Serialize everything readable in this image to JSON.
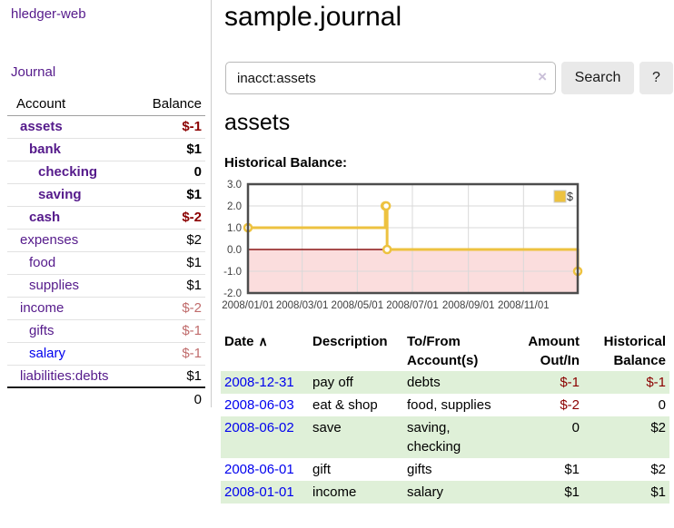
{
  "sidebar": {
    "brand": "hledger-web",
    "journal_link": "Journal",
    "accounts": {
      "col_account": "Account",
      "col_balance": "Balance",
      "rows": [
        {
          "name": "assets",
          "depth": 0,
          "bold": true,
          "balance": "$-1",
          "balance_class": "neg"
        },
        {
          "name": "bank",
          "depth": 1,
          "bold": true,
          "balance": "$1",
          "balance_class": ""
        },
        {
          "name": "checking",
          "depth": 2,
          "bold": true,
          "balance": "0",
          "balance_class": ""
        },
        {
          "name": "saving",
          "depth": 2,
          "bold": true,
          "balance": "$1",
          "balance_class": ""
        },
        {
          "name": "cash",
          "depth": 1,
          "bold": true,
          "balance": "$-2",
          "balance_class": "neg"
        },
        {
          "name": "expenses",
          "depth": 0,
          "bold": false,
          "balance": "$2",
          "balance_class": ""
        },
        {
          "name": "food",
          "depth": 1,
          "bold": false,
          "balance": "$1",
          "balance_class": ""
        },
        {
          "name": "supplies",
          "depth": 1,
          "bold": false,
          "balance": "$1",
          "balance_class": ""
        },
        {
          "name": "income",
          "depth": 0,
          "bold": false,
          "balance": "$-2",
          "balance_class": "neg-soft"
        },
        {
          "name": "gifts",
          "depth": 1,
          "bold": false,
          "balance": "$-1",
          "balance_class": "neg-soft"
        },
        {
          "name": "salary",
          "depth": 1,
          "bold": false,
          "balance": "$-1",
          "balance_class": "neg-soft",
          "link_color": "blue"
        },
        {
          "name": "liabilities:debts",
          "depth": 0,
          "bold": false,
          "balance": "$1",
          "balance_class": ""
        }
      ],
      "total": "0"
    }
  },
  "main": {
    "title": "sample.journal",
    "search": {
      "value": "inacct:assets",
      "clear_icon": "×",
      "search_button": "Search",
      "help_button": "?"
    },
    "account_heading": "assets",
    "chart_title": "Historical Balance:"
  },
  "chart_data": {
    "type": "line",
    "step": true,
    "title": "Historical Balance of assets",
    "series": [
      {
        "name": "$",
        "color": "#EDC240",
        "points": [
          [
            "2008-01-01",
            1
          ],
          [
            "2008-06-01",
            2
          ],
          [
            "2008-06-02",
            2
          ],
          [
            "2008-06-03",
            0
          ],
          [
            "2008-12-31",
            -1
          ]
        ]
      }
    ],
    "x_ticks": [
      "2008/01/01",
      "2008/03/01",
      "2008/05/01",
      "2008/07/01",
      "2008/09/01",
      "2008/11/01"
    ],
    "y_ticks": [
      3.0,
      2.0,
      1.0,
      0.0,
      -1.0,
      -2.0
    ],
    "xlim": [
      "2008-01-01",
      "2008-12-31"
    ],
    "ylim": [
      -2,
      3
    ],
    "grid": true,
    "legend_position": "top-right",
    "legend_label": "$",
    "negative_region_fill": "#fbdddd",
    "zero_line_color": "#8b1515",
    "grid_color": "#d9d9d9",
    "border_color": "#4d4d4d"
  },
  "register": {
    "headers": {
      "date": "Date",
      "sort_icon": "∧",
      "description": "Description",
      "accounts": "To/From Account(s)",
      "amount": "Amount Out/In",
      "balance": "Historical Balance"
    },
    "rows": [
      {
        "date": "2008-12-31",
        "description": "pay off",
        "accounts": "debts",
        "amount": "$-1",
        "amount_neg": true,
        "balance": "$-1",
        "balance_neg": true,
        "shaded": true
      },
      {
        "date": "2008-06-03",
        "description": "eat & shop",
        "accounts": "food, supplies",
        "amount": "$-2",
        "amount_neg": true,
        "balance": "0",
        "balance_neg": false,
        "shaded": false
      },
      {
        "date": "2008-06-02",
        "description": "save",
        "accounts": "saving, checking",
        "amount": "0",
        "amount_neg": false,
        "balance": "$2",
        "balance_neg": false,
        "shaded": true
      },
      {
        "date": "2008-06-01",
        "description": "gift",
        "accounts": "gifts",
        "amount": "$1",
        "amount_neg": false,
        "balance": "$2",
        "balance_neg": false,
        "shaded": false
      },
      {
        "date": "2008-01-01",
        "description": "income",
        "accounts": "salary",
        "amount": "$1",
        "amount_neg": false,
        "balance": "$1",
        "balance_neg": false,
        "shaded": true
      }
    ]
  },
  "colors": {
    "link_visited": "#551A8B",
    "link_unvisited": "#0000EE",
    "negative_strong": "#8B0000",
    "negative_soft": "#C06C6C",
    "row_shade_green": "#dff0d8",
    "series_gold": "#EDC240"
  }
}
